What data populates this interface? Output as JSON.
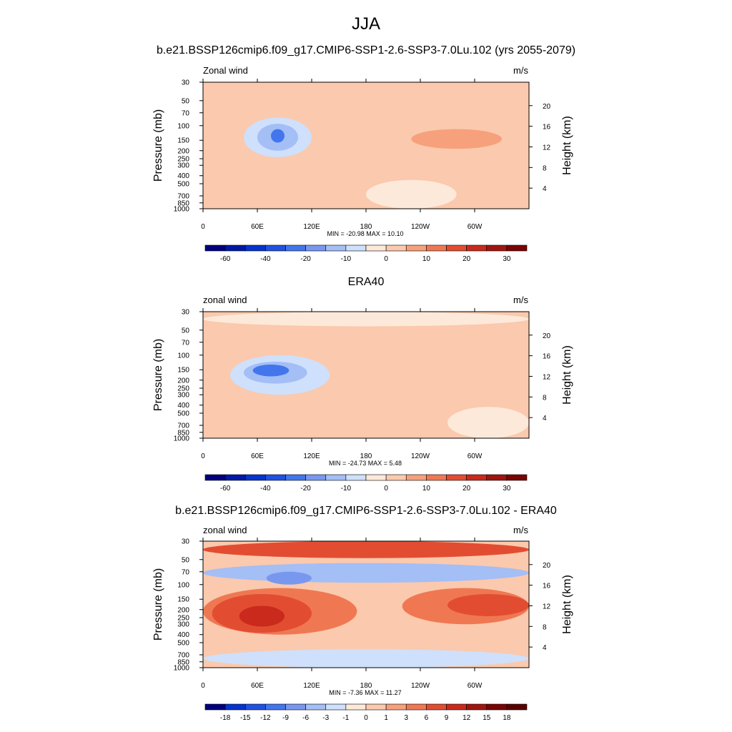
{
  "title": "JJA",
  "panels": [
    {
      "title": "b.e21.BSSP126cmip6.f09_g17.CMIP6-SSP1-2.6-SSP3-7.0Lu.102 (yrs 2055-2079)",
      "left_label": "Zonal wind",
      "right_label": "m/s",
      "stats": "MIN = -20.98  MAX =  10.10"
    },
    {
      "title": "ERA40",
      "left_label": "zonal wind",
      "right_label": "m/s",
      "stats": "MIN = -24.73  MAX =   5.48"
    },
    {
      "title": "b.e21.BSSP126cmip6.f09_g17.CMIP6-SSP1-2.6-SSP3-7.0Lu.102 - ERA40",
      "left_label": "zonal wind",
      "right_label": "m/s",
      "stats": "MIN =  -7.36  MAX =  11.27"
    }
  ],
  "colors": {
    "scale": [
      "#00007f",
      "#0019a5",
      "#0533cc",
      "#2151e0",
      "#4376ec",
      "#7898f0",
      "#a4bef6",
      "#cee0fb",
      "#fde9da",
      "#fbc9ad",
      "#f7a07c",
      "#ef7853",
      "#e24d32",
      "#c92a1c",
      "#a0150f",
      "#7a0403"
    ]
  },
  "chart_data": [
    {
      "type": "heatmap",
      "variable": "Zonal wind",
      "units": "m/s",
      "x_ticks": [
        "0",
        "60E",
        "120E",
        "180",
        "120W",
        "60W"
      ],
      "y_ticks": [
        "30",
        "50",
        "70",
        "100",
        "150",
        "200",
        "250",
        "300",
        "400",
        "500",
        "700",
        "850",
        "1000"
      ],
      "y_label": "Pressure (mb)",
      "y2_ticks": [
        "20",
        "16",
        "12",
        "8",
        "4"
      ],
      "y2_label": "Height (km)",
      "colorbar_labels": [
        "-60",
        "-40",
        "-20",
        "-10",
        "0",
        "10",
        "20",
        "30"
      ],
      "min": -20.98,
      "max": 10.1,
      "regions": [
        {
          "lon": [
            45,
            120
          ],
          "p": [
            80,
            240
          ],
          "value": -8
        },
        {
          "lon": [
            60,
            105
          ],
          "p": [
            95,
            200
          ],
          "value": -14
        },
        {
          "lon": [
            75,
            90
          ],
          "p": [
            110,
            160
          ],
          "value": -20
        },
        {
          "lon": [
            180,
            280
          ],
          "p": [
            110,
            250
          ],
          "value": 3
        },
        {
          "lon": [
            230,
            330
          ],
          "p": [
            110,
            190
          ],
          "value": 7
        },
        {
          "lon": [
            20,
            110
          ],
          "p": [
            350,
            900
          ],
          "value": 4
        },
        {
          "lon": [
            180,
            280
          ],
          "p": [
            450,
            1000
          ],
          "value": -2
        }
      ]
    },
    {
      "type": "heatmap",
      "variable": "zonal wind",
      "units": "m/s",
      "x_ticks": [
        "0",
        "60E",
        "120E",
        "180",
        "120W",
        "60W"
      ],
      "y_ticks": [
        "30",
        "50",
        "70",
        "100",
        "150",
        "200",
        "250",
        "300",
        "400",
        "500",
        "700",
        "850",
        "1000"
      ],
      "y_label": "Pressure (mb)",
      "y2_ticks": [
        "20",
        "16",
        "12",
        "8",
        "4"
      ],
      "y2_label": "Height (km)",
      "colorbar_labels": [
        "-60",
        "-40",
        "-20",
        "-10",
        "0",
        "10",
        "20",
        "30"
      ],
      "min": -24.73,
      "max": 5.48,
      "regions": [
        {
          "lon": [
            0,
            360
          ],
          "p": [
            30,
            45
          ],
          "value": -3
        },
        {
          "lon": [
            30,
            140
          ],
          "p": [
            100,
            300
          ],
          "value": -7
        },
        {
          "lon": [
            45,
            115
          ],
          "p": [
            120,
            220
          ],
          "value": -14
        },
        {
          "lon": [
            55,
            95
          ],
          "p": [
            130,
            180
          ],
          "value": -22
        },
        {
          "lon": [
            195,
            345
          ],
          "p": [
            90,
            210
          ],
          "value": 3
        },
        {
          "lon": [
            270,
            360
          ],
          "p": [
            420,
            1000
          ],
          "value": -2
        },
        {
          "lon": [
            25,
            100
          ],
          "p": [
            480,
            950
          ],
          "value": 2
        }
      ]
    },
    {
      "type": "heatmap",
      "variable": "zonal wind",
      "units": "m/s",
      "x_ticks": [
        "0",
        "60E",
        "120E",
        "180",
        "120W",
        "60W"
      ],
      "y_ticks": [
        "30",
        "50",
        "70",
        "100",
        "150",
        "200",
        "250",
        "300",
        "400",
        "500",
        "700",
        "850",
        "1000"
      ],
      "y_label": "Pressure (mb)",
      "y2_ticks": [
        "20",
        "16",
        "12",
        "8",
        "4"
      ],
      "y2_label": "Height (km)",
      "colorbar_labels": [
        "-18",
        "-15",
        "-12",
        "-9",
        "-6",
        "-3",
        "-1",
        "0",
        "1",
        "3",
        "6",
        "9",
        "12",
        "15",
        "18"
      ],
      "min": -7.36,
      "max": 11.27,
      "regions": [
        {
          "lon": [
            0,
            360
          ],
          "p": [
            30,
            48
          ],
          "value": 7
        },
        {
          "lon": [
            0,
            360
          ],
          "p": [
            55,
            95
          ],
          "value": -3
        },
        {
          "lon": [
            70,
            120
          ],
          "p": [
            70,
            100
          ],
          "value": -6
        },
        {
          "lon": [
            0,
            170
          ],
          "p": [
            110,
            400
          ],
          "value": 4
        },
        {
          "lon": [
            10,
            120
          ],
          "p": [
            130,
            380
          ],
          "value": 7
        },
        {
          "lon": [
            40,
            90
          ],
          "p": [
            180,
            320
          ],
          "value": 10
        },
        {
          "lon": [
            220,
            360
          ],
          "p": [
            110,
            300
          ],
          "value": 4
        },
        {
          "lon": [
            270,
            360
          ],
          "p": [
            130,
            240
          ],
          "value": 7
        },
        {
          "lon": [
            0,
            360
          ],
          "p": [
            600,
            1000
          ],
          "value": -2
        }
      ]
    }
  ]
}
